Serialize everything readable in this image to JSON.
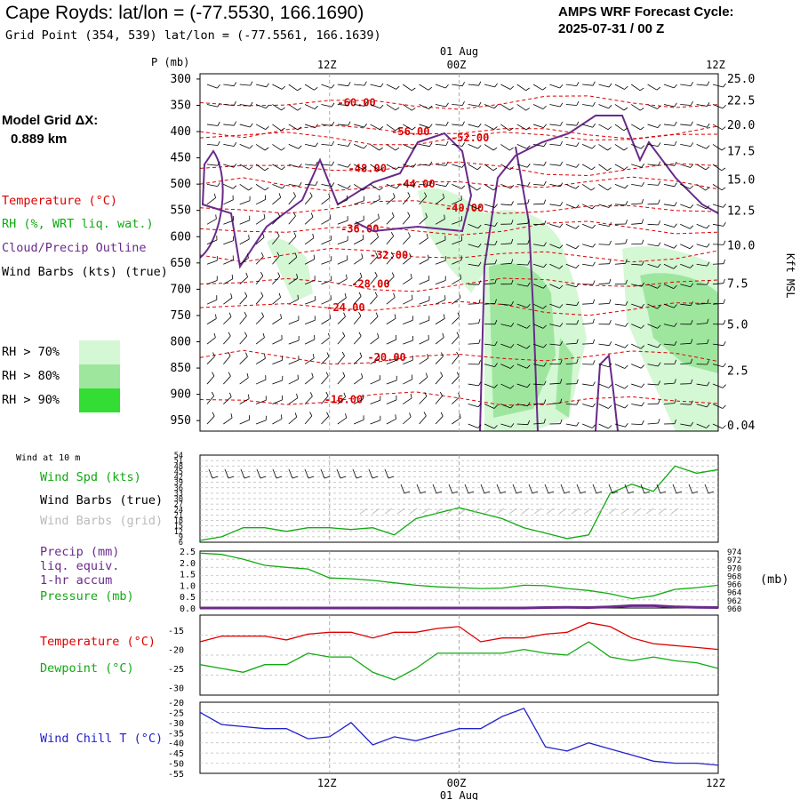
{
  "header": {
    "title": "Cape Royds:  lat/lon = (-77.5530, 166.1690)",
    "subtitle": "Grid Point (354, 539) lat/lon = (-77.5561, 166.1639)",
    "cycle_label": "AMPS WRF Forecast Cycle:",
    "cycle_value": "2025-07-31 / 00  Z"
  },
  "sidebar": {
    "model_grid_label": "Model Grid ΔX:",
    "model_grid_value": "0.889 km",
    "legend_items": [
      {
        "label": "Temperature (°C)",
        "color": "#dd0000"
      },
      {
        "label": "RH (%, WRT liq. wat.)",
        "color": "#11aa11"
      },
      {
        "label": "Cloud/Precip Outline",
        "color": "#6a2a8a"
      },
      {
        "label": "Wind Barbs (kts) (true)",
        "color": "#000000"
      }
    ],
    "rh_levels": [
      {
        "label": "RH > 70%",
        "color": "#d4f7d4"
      },
      {
        "label": "RH > 80%",
        "color": "#9ee69e"
      },
      {
        "label": "RH > 90%",
        "color": "#33dd33"
      }
    ]
  },
  "time_axis": {
    "top_labels": [
      "12Z",
      "00Z",
      "12Z"
    ],
    "date_label": "01 Aug",
    "bottom_labels": [
      "12Z",
      "00Z",
      "12Z"
    ]
  },
  "chart_data": [
    {
      "type": "heatmap",
      "title": "",
      "ylabel": "P (mb)",
      "y2label": "Kft MSL",
      "pressure_ticks": [
        300,
        350,
        400,
        450,
        500,
        550,
        600,
        650,
        700,
        750,
        800,
        850,
        900,
        950
      ],
      "height_ticks": [
        "25.0",
        "22.5",
        "20.0",
        "17.5",
        "15.0",
        "12.5",
        "10.0",
        "7.5",
        "5.0",
        "2.5",
        "0.04"
      ],
      "temperature_contour_labels": [
        "-60.00",
        "-56.00",
        "-52.00",
        "-48.00",
        "-44.00",
        "-40.00",
        "-36.00",
        "-32.00",
        "-28.00",
        "-24.00",
        "-20.00",
        "-16.00"
      ],
      "temp_levels": [
        -60,
        -56,
        -52,
        -48,
        -44,
        -40,
        -36,
        -32,
        -28,
        -24,
        -20,
        -16
      ],
      "temp_level_pressure": [
        345,
        400,
        412,
        470,
        500,
        545,
        585,
        635,
        690,
        735,
        830,
        910
      ],
      "temp_label_hour": [
        14.5,
        19.5,
        25,
        15.5,
        20,
        24.5,
        14.8,
        17.5,
        15.8,
        13.5,
        17.3,
        13.3
      ]
    },
    {
      "type": "line",
      "title": "Wind at 10 m",
      "series": [
        {
          "name": "Wind Spd (kts)",
          "color": "#11aa11",
          "x": [
            0,
            2,
            4,
            6,
            8,
            10,
            12,
            14,
            16,
            18,
            20,
            22,
            24,
            26,
            28,
            30,
            32,
            34,
            36,
            38,
            40,
            42,
            44,
            46,
            48
          ],
          "values": [
            7,
            9,
            14,
            14,
            12,
            14,
            14,
            13,
            14,
            10,
            19,
            22,
            25,
            22,
            19,
            14,
            11,
            8,
            10,
            33,
            38,
            34,
            48,
            44,
            46
          ]
        }
      ],
      "extra_legend": [
        "Wind Barbs (true)",
        "Wind Barbs (grid)"
      ],
      "y_ticks": [
        6,
        9,
        12,
        15,
        18,
        21,
        24,
        27,
        30,
        33,
        36,
        39,
        42,
        45,
        48,
        51,
        54
      ],
      "ylim": [
        6,
        54
      ]
    },
    {
      "type": "line",
      "series": [
        {
          "name": "Pressure (mb)",
          "color": "#11aa11",
          "x": [
            0,
            2,
            4,
            6,
            8,
            10,
            12,
            14,
            16,
            18,
            20,
            22,
            24,
            26,
            28,
            30,
            32,
            34,
            36,
            38,
            40,
            42,
            44,
            46,
            48
          ],
          "values": [
            973.5,
            973.2,
            972,
            970.5,
            970,
            969.6,
            967.4,
            967.2,
            966.8,
            966.2,
            965.6,
            965.2,
            965.0,
            964.8,
            964.9,
            965.6,
            965.5,
            964.8,
            964.3,
            963.5,
            962.3,
            963,
            964.6,
            965,
            965.6
          ]
        },
        {
          "name": "Precip (mm) liq. equiv. 1-hr accum",
          "color": "#6a2a8a",
          "x": [
            0,
            2,
            4,
            6,
            8,
            10,
            12,
            14,
            16,
            18,
            20,
            22,
            24,
            26,
            28,
            30,
            32,
            34,
            36,
            38,
            40,
            42,
            44,
            46,
            48
          ],
          "values": [
            0,
            0,
            0,
            0,
            0,
            0,
            0,
            0,
            0,
            0,
            0,
            0,
            0,
            0,
            0,
            0,
            0.02,
            0.03,
            0.02,
            0.05,
            0.1,
            0.1,
            0.05,
            0.03,
            0.02
          ]
        }
      ],
      "y_ticks": [
        "2.5",
        "2.0",
        "1.5",
        "1.0",
        "0.5",
        "0.0"
      ],
      "y2_ticks": [
        "974",
        "972",
        "970",
        "968",
        "966",
        "964",
        "962",
        "960"
      ],
      "ylim": [
        0,
        2.5
      ],
      "y2lim": [
        960,
        974
      ],
      "y2label": "(mb)"
    },
    {
      "type": "line",
      "series": [
        {
          "name": "Temperature (°C)",
          "color": "#dd0000",
          "x": [
            0,
            2,
            4,
            6,
            8,
            10,
            12,
            14,
            16,
            18,
            20,
            22,
            24,
            26,
            28,
            30,
            32,
            34,
            36,
            38,
            40,
            42,
            44,
            46,
            48
          ],
          "values": [
            -18,
            -16.5,
            -16.5,
            -16.5,
            -17.5,
            -16,
            -15.5,
            -15.5,
            -17,
            -15.5,
            -15.5,
            -14.5,
            -14,
            -18,
            -17,
            -17,
            -16,
            -15.5,
            -13,
            -14,
            -17,
            -18.5,
            -19,
            -19.5,
            -20
          ]
        },
        {
          "name": "Dewpoint (°C)",
          "color": "#11aa11",
          "x": [
            0,
            2,
            4,
            6,
            8,
            10,
            12,
            14,
            16,
            18,
            20,
            22,
            24,
            26,
            28,
            30,
            32,
            34,
            36,
            38,
            40,
            42,
            44,
            46,
            48
          ],
          "values": [
            -24,
            -25,
            -26,
            -24,
            -24,
            -21,
            -22,
            -22,
            -26,
            -28,
            -25,
            -21,
            -21,
            -21,
            -21,
            -20,
            -21,
            -21.5,
            -18,
            -22,
            -23,
            -22,
            -23,
            -23.5,
            -25
          ]
        }
      ],
      "y_ticks": [
        "-15",
        "-20",
        "-25",
        "-30"
      ],
      "ylim": [
        -32,
        -11
      ]
    },
    {
      "type": "line",
      "series": [
        {
          "name": "Wind Chill T (°C)",
          "color": "#2222cc",
          "x": [
            0,
            2,
            4,
            6,
            8,
            10,
            12,
            14,
            16,
            18,
            20,
            22,
            24,
            26,
            28,
            30,
            32,
            34,
            36,
            38,
            40,
            42,
            44,
            46,
            48
          ],
          "values": [
            -25,
            -31,
            -32,
            -33,
            -33,
            -38,
            -37,
            -30,
            -41,
            -37,
            -39,
            -36,
            -33,
            -33,
            -27,
            -23,
            -42,
            -44,
            -40,
            -43,
            -46,
            -49,
            -50,
            -50,
            -51
          ]
        }
      ],
      "y_ticks": [
        "-20",
        "-25",
        "-30",
        "-35",
        "-40",
        "-45",
        "-50",
        "-55"
      ],
      "ylim": [
        -20,
        -55
      ]
    }
  ]
}
